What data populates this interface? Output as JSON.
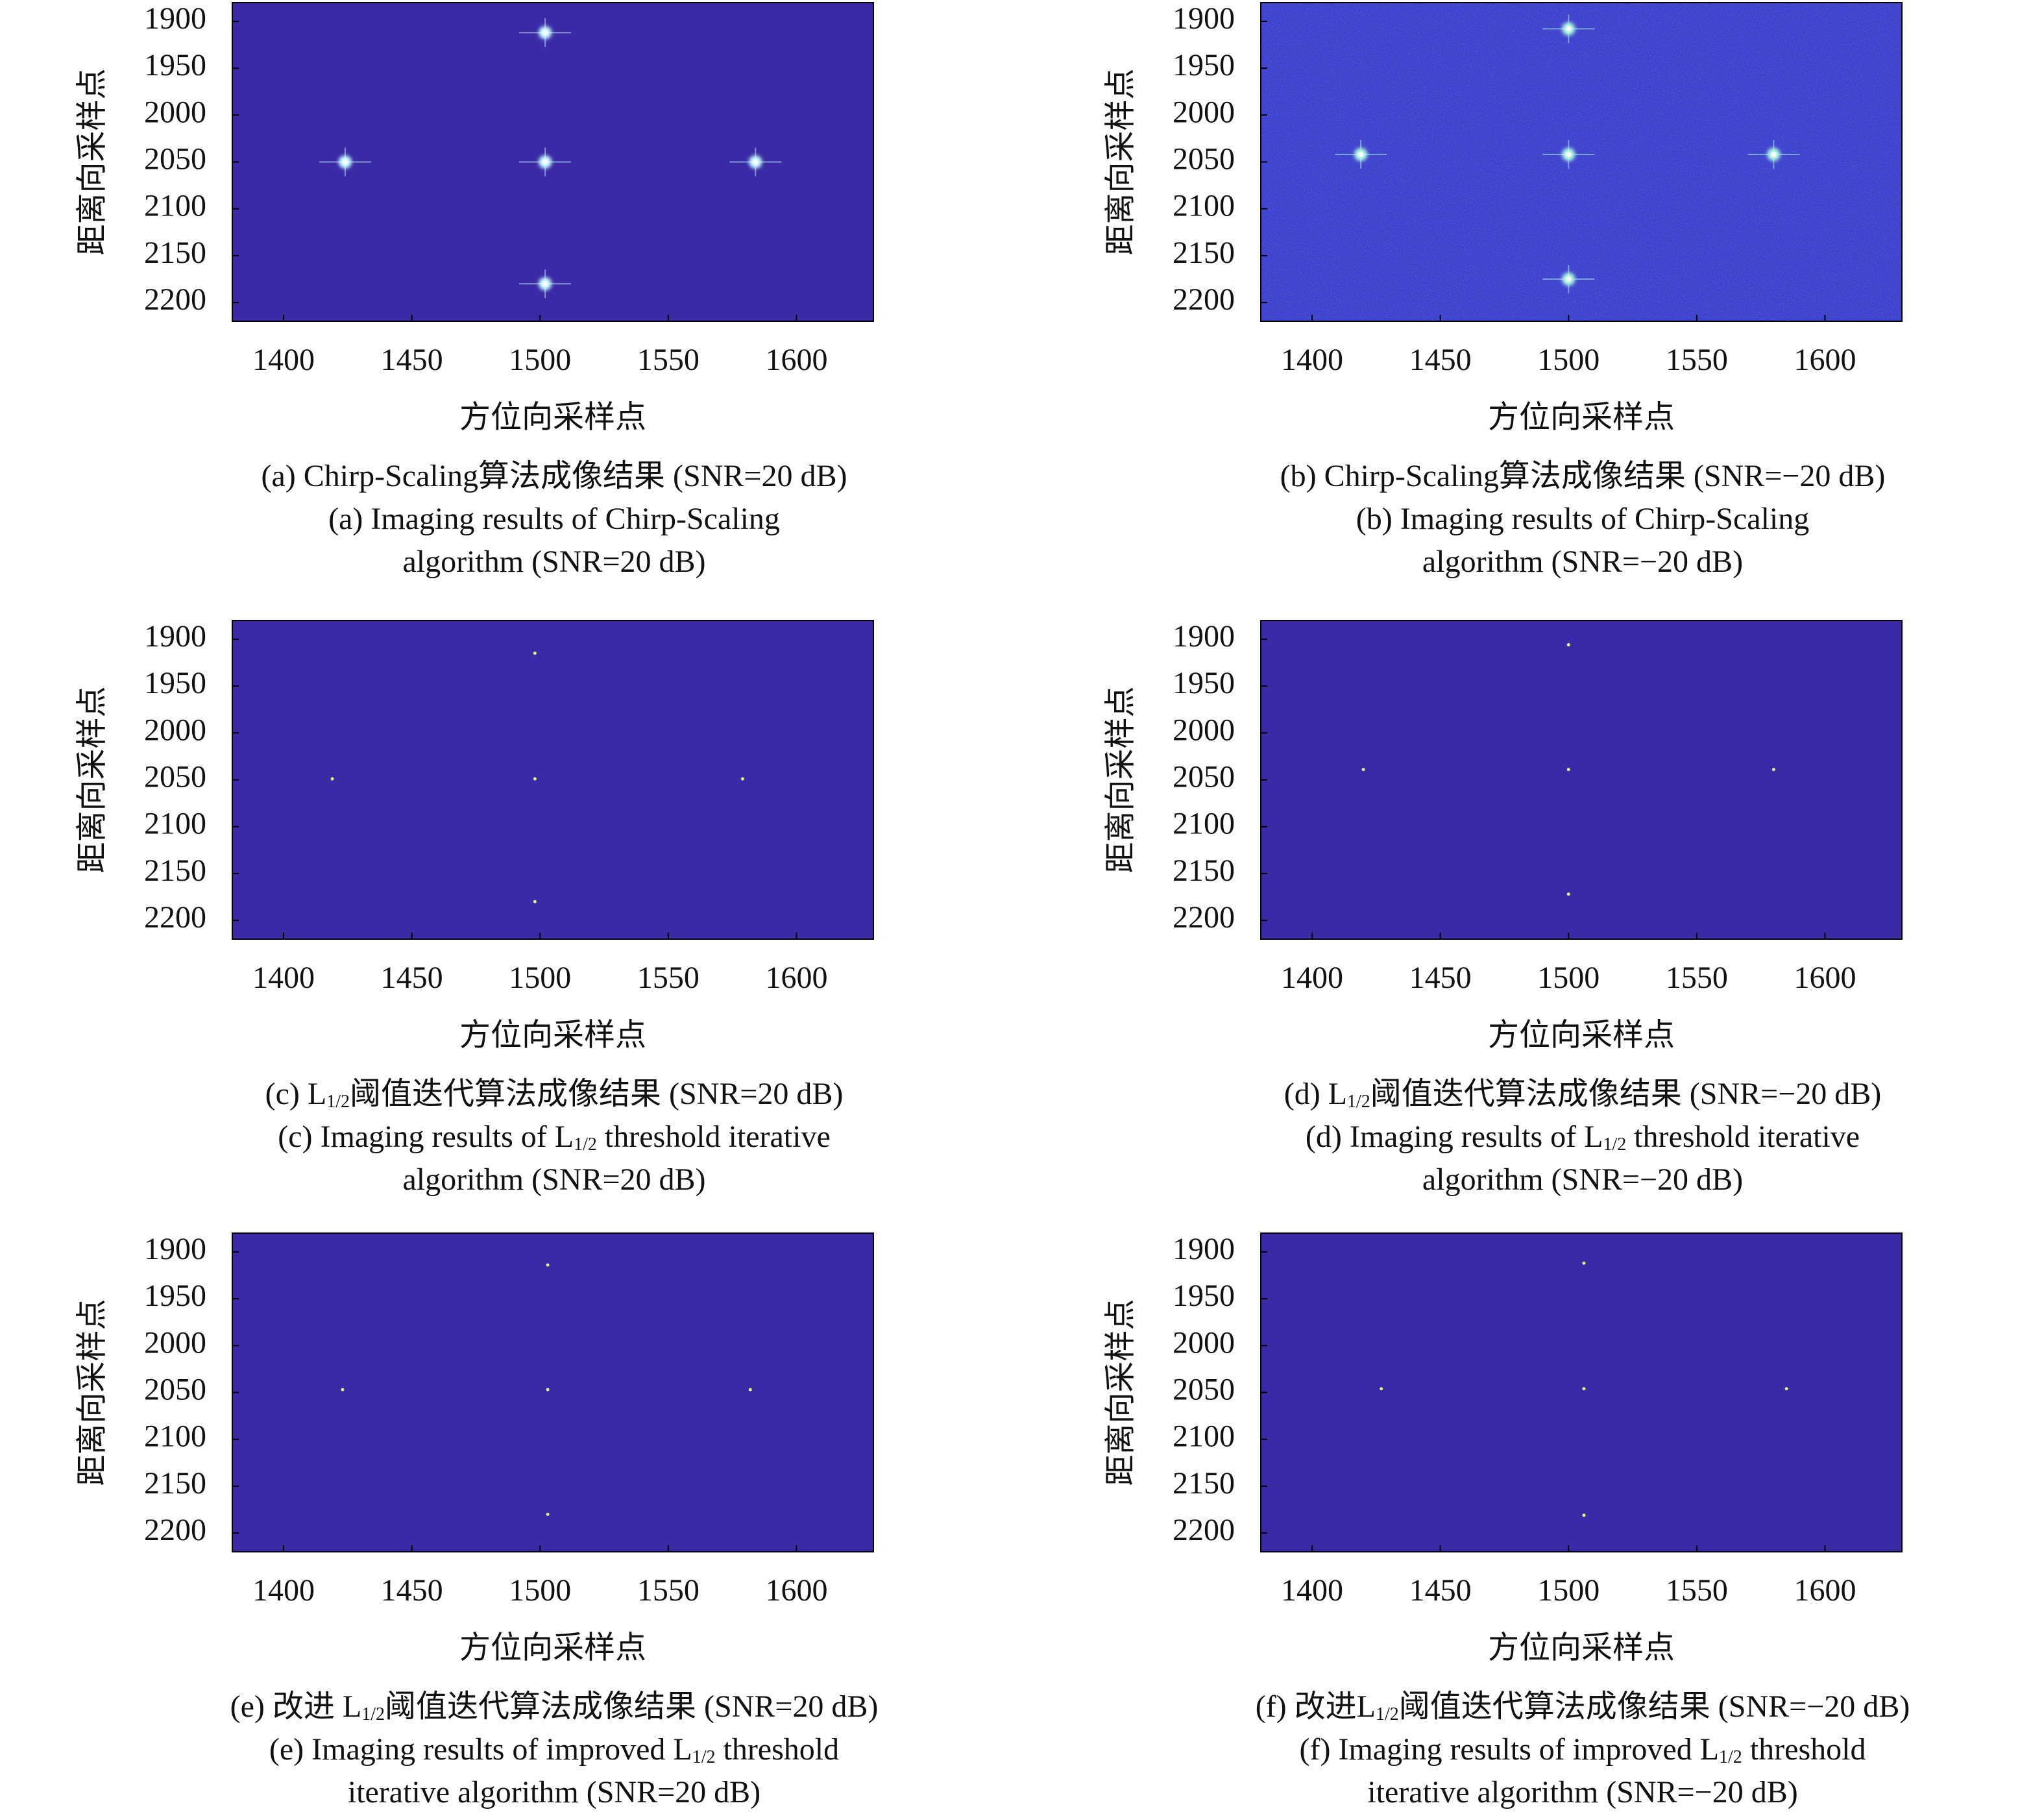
{
  "chart_data": [
    {
      "type": "scatter",
      "xlabel": "方位向采样点",
      "ylabel": "距离向采样点",
      "x": [
        1502,
        1424,
        1502,
        1584,
        1502
      ],
      "values": [
        1912,
        2050,
        2050,
        2050,
        2180
      ],
      "xlim": [
        1380,
        1630
      ],
      "ylim": [
        1880,
        2220
      ],
      "y_inverted": true,
      "xticks": [
        1400,
        1450,
        1500,
        1550,
        1600
      ],
      "yticks": [
        1900,
        1950,
        2000,
        2050,
        2100,
        2150,
        2200
      ],
      "background_color": "#3a2aa6",
      "color": "#c8ffff",
      "sidelobes": true,
      "noise": false,
      "caption": [
        [
          {
            "text": "(a) Chirp-Scaling算法成像结果 (SNR=20 dB)"
          }
        ],
        [
          {
            "text": "(a) Imaging results of Chirp-Scaling"
          }
        ],
        [
          {
            "text": "algorithm (SNR=20 dB)"
          }
        ]
      ]
    },
    {
      "type": "scatter",
      "xlabel": "方位向采样点",
      "ylabel": "距离向采样点",
      "x": [
        1500,
        1419,
        1500,
        1580,
        1500
      ],
      "values": [
        1908,
        2042,
        2042,
        2042,
        2175
      ],
      "xlim": [
        1380,
        1630
      ],
      "ylim": [
        1880,
        2220
      ],
      "y_inverted": true,
      "xticks": [
        1400,
        1450,
        1500,
        1550,
        1600
      ],
      "yticks": [
        1900,
        1950,
        2000,
        2050,
        2100,
        2150,
        2200
      ],
      "background_color": "#3a3dcc",
      "color": "#b0ffe0",
      "sidelobes": true,
      "noise": true,
      "caption": [
        [
          {
            "text": "(b) Chirp-Scaling算法成像结果 (SNR=−20 dB)"
          }
        ],
        [
          {
            "text": "(b) Imaging results of Chirp-Scaling"
          }
        ],
        [
          {
            "text": "algorithm (SNR=−20 dB)"
          }
        ]
      ]
    },
    {
      "type": "scatter",
      "xlabel": "方位向采样点",
      "ylabel": "距离向采样点",
      "x": [
        1498,
        1419,
        1498,
        1579,
        1498
      ],
      "values": [
        1915,
        2049,
        2049,
        2049,
        2180
      ],
      "xlim": [
        1380,
        1630
      ],
      "ylim": [
        1880,
        2220
      ],
      "y_inverted": true,
      "xticks": [
        1400,
        1450,
        1500,
        1550,
        1600
      ],
      "yticks": [
        1900,
        1950,
        2000,
        2050,
        2100,
        2150,
        2200
      ],
      "background_color": "#3a2aa6",
      "color": "#e6f080",
      "sidelobes": false,
      "noise": false,
      "caption": [
        [
          {
            "text": "(c) L"
          },
          {
            "text": "1/2",
            "sub": true
          },
          {
            "text": "阈值迭代算法成像结果 (SNR=20 dB)"
          }
        ],
        [
          {
            "text": "(c) Imaging results of L"
          },
          {
            "text": "1/2",
            "sub": true
          },
          {
            "text": " threshold iterative"
          }
        ],
        [
          {
            "text": "algorithm (SNR=20 dB)"
          }
        ]
      ]
    },
    {
      "type": "scatter",
      "xlabel": "方位向采样点",
      "ylabel": "距离向采样点",
      "x": [
        1500,
        1420,
        1500,
        1580,
        1500
      ],
      "values": [
        1906,
        2039,
        2039,
        2039,
        2172
      ],
      "xlim": [
        1380,
        1630
      ],
      "ylim": [
        1880,
        2220
      ],
      "y_inverted": true,
      "xticks": [
        1400,
        1450,
        1500,
        1550,
        1600
      ],
      "yticks": [
        1900,
        1950,
        2000,
        2050,
        2100,
        2150,
        2200
      ],
      "background_color": "#3a2aa6",
      "color": "#e6f080",
      "sidelobes": false,
      "noise": false,
      "caption": [
        [
          {
            "text": "(d) L"
          },
          {
            "text": "1/2",
            "sub": true
          },
          {
            "text": "阈值迭代算法成像结果 (SNR=−20 dB)"
          }
        ],
        [
          {
            "text": "(d) Imaging results of L"
          },
          {
            "text": "1/2",
            "sub": true
          },
          {
            "text": " threshold iterative"
          }
        ],
        [
          {
            "text": "algorithm (SNR=−20 dB)"
          }
        ]
      ]
    },
    {
      "type": "scatter",
      "xlabel": "方位向采样点",
      "ylabel": "距离向采样点",
      "x": [
        1503,
        1423,
        1503,
        1582,
        1503
      ],
      "values": [
        1914,
        2047,
        2047,
        2047,
        2180
      ],
      "xlim": [
        1380,
        1630
      ],
      "ylim": [
        1880,
        2220
      ],
      "y_inverted": true,
      "xticks": [
        1400,
        1450,
        1500,
        1550,
        1600
      ],
      "yticks": [
        1900,
        1950,
        2000,
        2050,
        2100,
        2150,
        2200
      ],
      "background_color": "#3a2aa6",
      "color": "#e6f080",
      "sidelobes": false,
      "noise": false,
      "caption": [
        [
          {
            "text": "(e) 改进 L"
          },
          {
            "text": "1/2",
            "sub": true
          },
          {
            "text": "阈值迭代算法成像结果 (SNR=20 dB)"
          }
        ],
        [
          {
            "text": "(e) Imaging results of improved L"
          },
          {
            "text": "1/2",
            "sub": true
          },
          {
            "text": " threshold"
          }
        ],
        [
          {
            "text": "iterative algorithm (SNR=20 dB)"
          }
        ]
      ]
    },
    {
      "type": "scatter",
      "xlabel": "方位向采样点",
      "ylabel": "距离向采样点",
      "x": [
        1506,
        1427,
        1506,
        1585,
        1506
      ],
      "values": [
        1912,
        2046,
        2046,
        2046,
        2181
      ],
      "xlim": [
        1380,
        1630
      ],
      "ylim": [
        1880,
        2220
      ],
      "y_inverted": true,
      "xticks": [
        1400,
        1450,
        1500,
        1550,
        1600
      ],
      "yticks": [
        1900,
        1950,
        2000,
        2050,
        2100,
        2150,
        2200
      ],
      "background_color": "#3a2aa6",
      "color": "#e6f080",
      "sidelobes": false,
      "noise": false,
      "caption": [
        [
          {
            "text": "(f) 改进L"
          },
          {
            "text": "1/2",
            "sub": true
          },
          {
            "text": "阈值迭代算法成像结果 (SNR=−20 dB)"
          }
        ],
        [
          {
            "text": "(f) Imaging results of improved L"
          },
          {
            "text": "1/2",
            "sub": true
          },
          {
            "text": " threshold"
          }
        ],
        [
          {
            "text": "iterative algorithm (SNR=−20 dB)"
          }
        ]
      ]
    }
  ]
}
